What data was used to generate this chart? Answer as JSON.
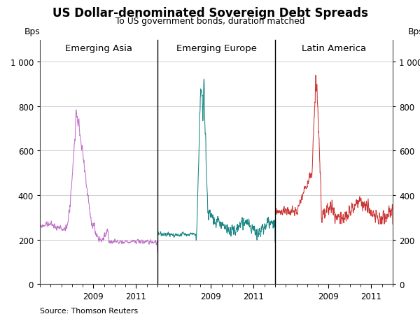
{
  "title": "US Dollar-denominated Sovereign Debt Spreads",
  "subtitle": "To US government bonds, duration matched",
  "source": "Source: Thomson Reuters",
  "ylabel": "Bps",
  "ylim": [
    0,
    1100
  ],
  "yticks": [
    0,
    200,
    400,
    600,
    800,
    1000
  ],
  "ytick_labels": [
    "0",
    "200",
    "400",
    "600",
    "800",
    "1 000"
  ],
  "panel_labels": [
    "Emerging Asia",
    "Emerging Europe",
    "Latin America"
  ],
  "colors": [
    "#c070c8",
    "#1a8585",
    "#cc3535"
  ],
  "background": "#ffffff",
  "grid_color": "#c8c8c8",
  "panel_years": 6,
  "year_start": 2006,
  "xtick_years": [
    2009,
    2011
  ],
  "xtick_minor_interval": 0.5
}
